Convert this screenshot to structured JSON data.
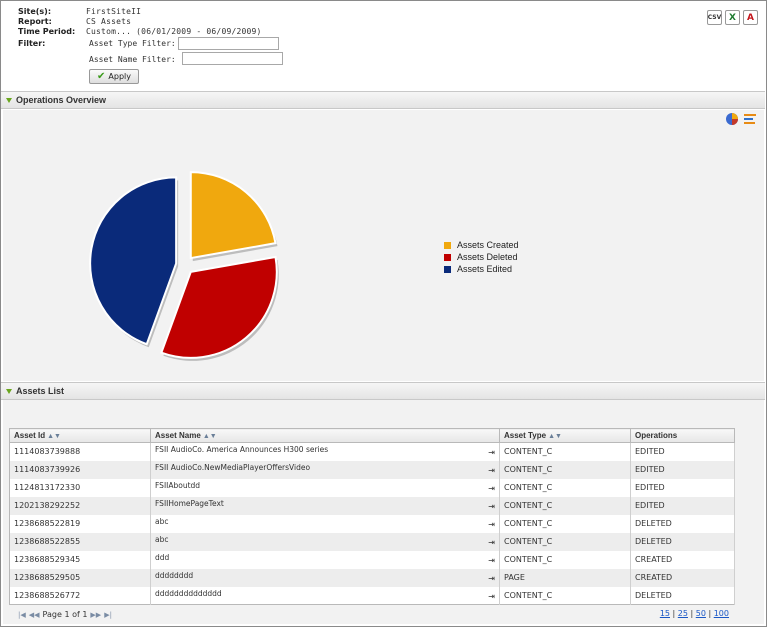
{
  "header": {
    "params": [
      {
        "key": "Site(s):",
        "value": "FirstSiteII"
      },
      {
        "key": "Report:",
        "value": "CS Assets"
      },
      {
        "key": "Time Period:",
        "value": "Custom... (06/01/2009 - 06/09/2009)"
      },
      {
        "key": "Filter:",
        "value": ""
      }
    ],
    "asset_type_filter_label": "Asset Type Filter:",
    "asset_type_filter_value": "",
    "asset_name_filter_label": "Asset Name Filter:",
    "asset_name_filter_value": "",
    "apply_label": "Apply",
    "exports": [
      {
        "icon": "csv-icon",
        "label": "CSV"
      },
      {
        "icon": "excel-icon",
        "label": "X",
        "color": "#1d7a2e"
      },
      {
        "icon": "pdf-icon",
        "label": "A",
        "color": "#c4161c"
      }
    ]
  },
  "sections": {
    "overview_title": "Operations Overview",
    "assets_list_title": "Assets List"
  },
  "chart_data": {
    "type": "pie",
    "categories": [
      "Assets Created",
      "Assets Deleted",
      "Assets Edited"
    ],
    "values": [
      2,
      3,
      4
    ],
    "colors": [
      "#f0a80e",
      "#c00000",
      "#0a2a7a"
    ],
    "legend_placement": "right"
  },
  "table": {
    "columns": [
      {
        "label": "Asset Id",
        "sortable": true
      },
      {
        "label": "Asset Name",
        "sortable": true
      },
      {
        "label": "Asset Type",
        "sortable": true
      },
      {
        "label": "Operations",
        "sortable": false
      }
    ],
    "rows": [
      [
        "1114083739888",
        "FSII AudioCo. America Announces H300 series",
        "CONTENT_C",
        "EDITED"
      ],
      [
        "1114083739926",
        "FSII AudioCo.NewMediaPlayerOffersVideo",
        "CONTENT_C",
        "EDITED"
      ],
      [
        "1124813172330",
        "FSIIAboutdd",
        "CONTENT_C",
        "EDITED"
      ],
      [
        "1202138292252",
        "FSIIHomePageText",
        "CONTENT_C",
        "EDITED"
      ],
      [
        "1238688522819",
        "abc",
        "CONTENT_C",
        "DELETED"
      ],
      [
        "1238688522855",
        "abc",
        "CONTENT_C",
        "DELETED"
      ],
      [
        "1238688529345",
        "ddd",
        "CONTENT_C",
        "CREATED"
      ],
      [
        "1238688529505",
        "dddddddd",
        "PAGE",
        "CREATED"
      ],
      [
        "1238688526772",
        "dddddddddddddd",
        "CONTENT_C",
        "DELETED"
      ]
    ]
  },
  "pager": {
    "page_text": "Page 1 of 1",
    "page_sizes": [
      "15",
      "25",
      "50",
      "100"
    ]
  }
}
